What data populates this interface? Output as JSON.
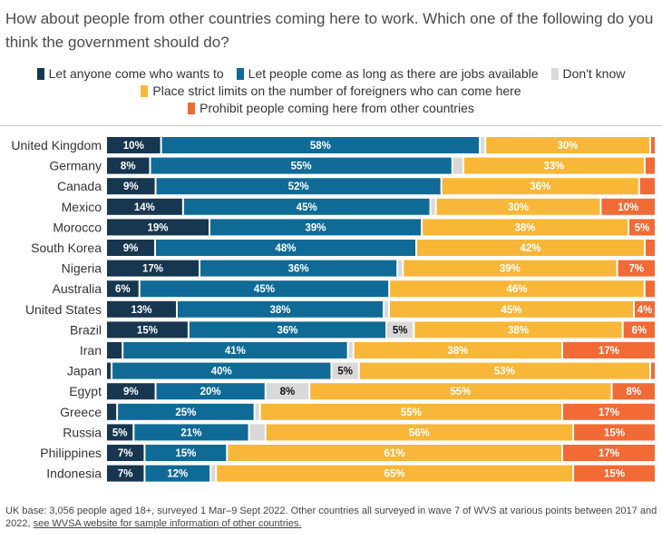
{
  "title": "How about people from other countries coming here to work. Which one of the following do you think the government should do?",
  "colors": {
    "anyone": "#17364f",
    "jobs": "#0f6b96",
    "dontknow": "#d9d9d9",
    "limits": "#f8b739",
    "prohibit": "#f26a35"
  },
  "legend": [
    {
      "label": "Let anyone come who wants to",
      "color": "#17364f"
    },
    {
      "label": "Let people come as long as there are jobs available",
      "color": "#0f6b96"
    },
    {
      "label": "Don't know",
      "color": "#d9d9d9"
    },
    {
      "label": "Place strict limits on the number of foreigners who can come here",
      "color": "#f8b739"
    },
    {
      "label": "Prohibit people coming here from other countries",
      "color": "#f26a35"
    }
  ],
  "footnote": {
    "text": "UK base: 3,056 people aged 18+, surveyed 1 Mar–9 Sept 2022. Other countries all surveyed in wave 7 of WVS at various points between 2017 and 2022,",
    "link": "see WVSA website for sample information of other countries."
  },
  "chart_data": {
    "type": "bar",
    "orientation": "horizontal",
    "stacked": true,
    "xlim": [
      0,
      100
    ],
    "unit": "%",
    "categories": [
      "United Kingdom",
      "Germany",
      "Canada",
      "Mexico",
      "Morocco",
      "South Korea",
      "Nigeria",
      "Australia",
      "United States",
      "Brazil",
      "Iran",
      "Japan",
      "Egypt",
      "Greece",
      "Russia",
      "Philippines",
      "Indonesia"
    ],
    "series": [
      {
        "name": "Let anyone come who wants to",
        "color": "#17364f",
        "label_color": "#ffffff",
        "values": [
          10,
          8,
          9,
          14,
          19,
          9,
          17,
          6,
          13,
          15,
          3,
          1,
          9,
          2,
          5,
          7,
          7
        ]
      },
      {
        "name": "Let people come as long as there are jobs available",
        "color": "#0f6b96",
        "label_color": "#ffffff",
        "values": [
          58,
          55,
          52,
          45,
          39,
          48,
          36,
          45,
          38,
          36,
          41,
          40,
          20,
          25,
          21,
          15,
          12
        ]
      },
      {
        "name": "Don't know",
        "color": "#d9d9d9",
        "label_color": "#111111",
        "values": [
          1,
          2,
          0,
          1,
          0,
          0,
          1,
          0,
          1,
          5,
          1,
          5,
          8,
          1,
          3,
          0,
          1
        ]
      },
      {
        "name": "Place strict limits on the number of foreigners who can come here",
        "color": "#f8b739",
        "label_color": "#ffffff",
        "values": [
          30,
          33,
          36,
          30,
          38,
          42,
          39,
          46,
          45,
          38,
          38,
          53,
          55,
          55,
          56,
          61,
          65
        ]
      },
      {
        "name": "Prohibit people coming here from other countries",
        "color": "#f26a35",
        "label_color": "#ffffff",
        "values": [
          1,
          2,
          3,
          10,
          5,
          2,
          7,
          2,
          4,
          6,
          17,
          1,
          8,
          17,
          15,
          17,
          15
        ]
      }
    ],
    "labels_shown_min": 4
  }
}
